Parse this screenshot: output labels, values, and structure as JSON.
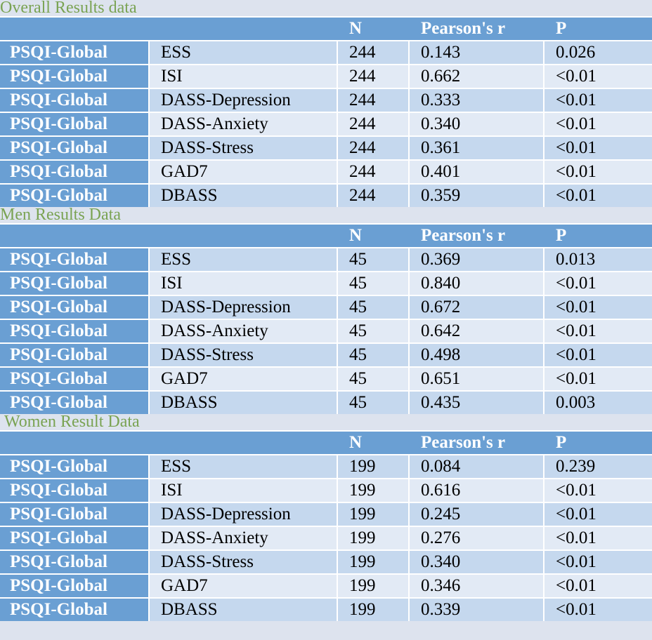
{
  "sections": [
    {
      "title": "Overall Results data",
      "headers": [
        "",
        "",
        "N",
        "Pearson's r",
        "P"
      ],
      "rows": [
        [
          "PSQI-Global",
          "ESS",
          "244",
          "0.143",
          "0.026"
        ],
        [
          "PSQI-Global",
          "ISI",
          "244",
          "0.662",
          "<0.01"
        ],
        [
          "PSQI-Global",
          "DASS-Depression",
          "244",
          "0.333",
          "<0.01"
        ],
        [
          "PSQI-Global",
          "DASS-Anxiety",
          "244",
          "0.340",
          "<0.01"
        ],
        [
          "PSQI-Global",
          "DASS-Stress",
          "244",
          "0.361",
          "<0.01"
        ],
        [
          "PSQI-Global",
          "GAD7",
          "244",
          "0.401",
          "<0.01"
        ],
        [
          "PSQI-Global",
          "DBASS",
          "244",
          "0.359",
          "<0.01"
        ]
      ]
    },
    {
      "title": "Men Results Data",
      "headers": [
        "",
        "",
        "N",
        "Pearson's r",
        "P"
      ],
      "rows": [
        [
          "PSQI-Global",
          "ESS",
          "45",
          "0.369",
          "0.013"
        ],
        [
          "PSQI-Global",
          "ISI",
          "45",
          "0.840",
          "<0.01"
        ],
        [
          "PSQI-Global",
          "DASS-Depression",
          "45",
          "0.672",
          "<0.01"
        ],
        [
          "PSQI-Global",
          "DASS-Anxiety",
          "45",
          "0.642",
          "<0.01"
        ],
        [
          "PSQI-Global",
          "DASS-Stress",
          "45",
          "0.498",
          "<0.01"
        ],
        [
          "PSQI-Global",
          "GAD7",
          "45",
          "0.651",
          "<0.01"
        ],
        [
          "PSQI-Global",
          "DBASS",
          "45",
          "0.435",
          "0.003"
        ]
      ]
    },
    {
      "title": "Women Result Data",
      "headers": [
        "",
        "",
        "N",
        "Pearson's r",
        "P"
      ],
      "rows": [
        [
          "PSQI-Global",
          "ESS",
          "199",
          "0.084",
          "0.239"
        ],
        [
          "PSQI-Global",
          "ISI",
          "199",
          "0.616",
          "<0.01"
        ],
        [
          "PSQI-Global",
          "DASS-Depression",
          "199",
          "0.245",
          "<0.01"
        ],
        [
          "PSQI-Global",
          "DASS-Anxiety",
          "199",
          "0.276",
          "<0.01"
        ],
        [
          "PSQI-Global",
          "DASS-Stress",
          "199",
          "0.340",
          "<0.01"
        ],
        [
          "PSQI-Global",
          "GAD7",
          "199",
          "0.346",
          "<0.01"
        ],
        [
          "PSQI-Global",
          "DBASS",
          "199",
          "0.339",
          "<0.01"
        ]
      ]
    }
  ]
}
